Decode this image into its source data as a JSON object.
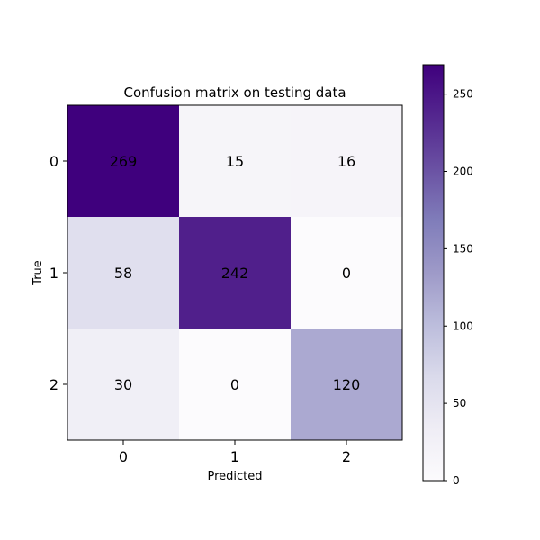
{
  "chart_data": {
    "type": "heatmap",
    "title": "Confusion matrix on testing data",
    "xlabel": "Predicted",
    "ylabel": "True",
    "x_tick_labels": [
      "0",
      "1",
      "2"
    ],
    "y_tick_labels": [
      "0",
      "1",
      "2"
    ],
    "values": [
      [
        269,
        15,
        16
      ],
      [
        58,
        242,
        0
      ],
      [
        30,
        0,
        120
      ]
    ],
    "colormap": "Purples",
    "color_range": [
      0,
      269
    ],
    "colorbar_ticks": [
      0,
      50,
      100,
      150,
      200,
      250
    ],
    "grid": false
  }
}
